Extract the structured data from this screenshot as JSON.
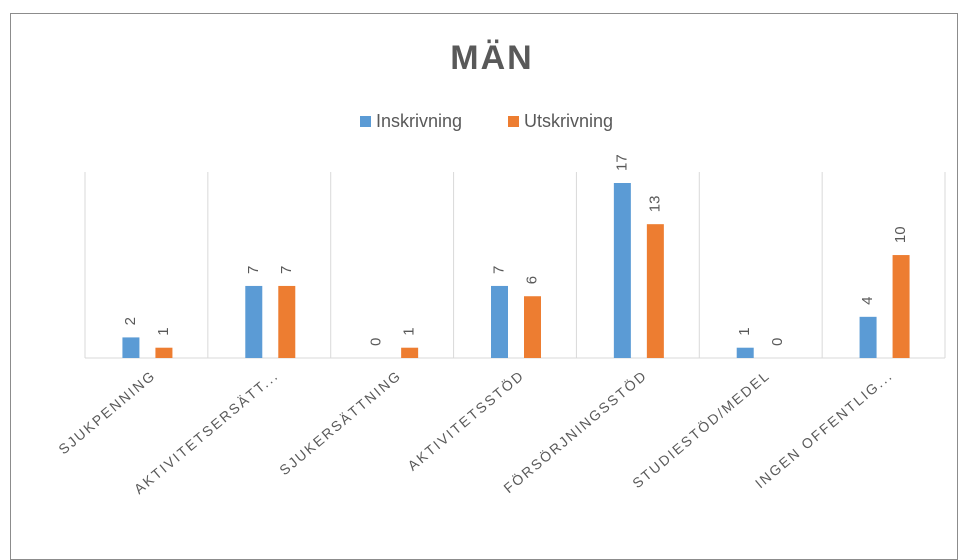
{
  "chart_data": {
    "type": "bar",
    "title": "MÄN",
    "categories": [
      "SJUKPENNING",
      "AKTIVITETSERSÄTT...",
      "SJUKERSÄTTNING",
      "AKTIVITETSSTÖD",
      "FÖRSÖRJNINGSSTÖD",
      "STUDIESTÖD/MEDEL",
      "INGEN OFFENTLIG..."
    ],
    "series": [
      {
        "name": "Inskrivning",
        "color": "#5b9bd5",
        "values": [
          2,
          7,
          0,
          7,
          17,
          1,
          4
        ]
      },
      {
        "name": "Utskrivning",
        "color": "#ed7d31",
        "values": [
          1,
          7,
          1,
          6,
          13,
          0,
          10
        ]
      }
    ],
    "legend": "top",
    "grid": true
  }
}
